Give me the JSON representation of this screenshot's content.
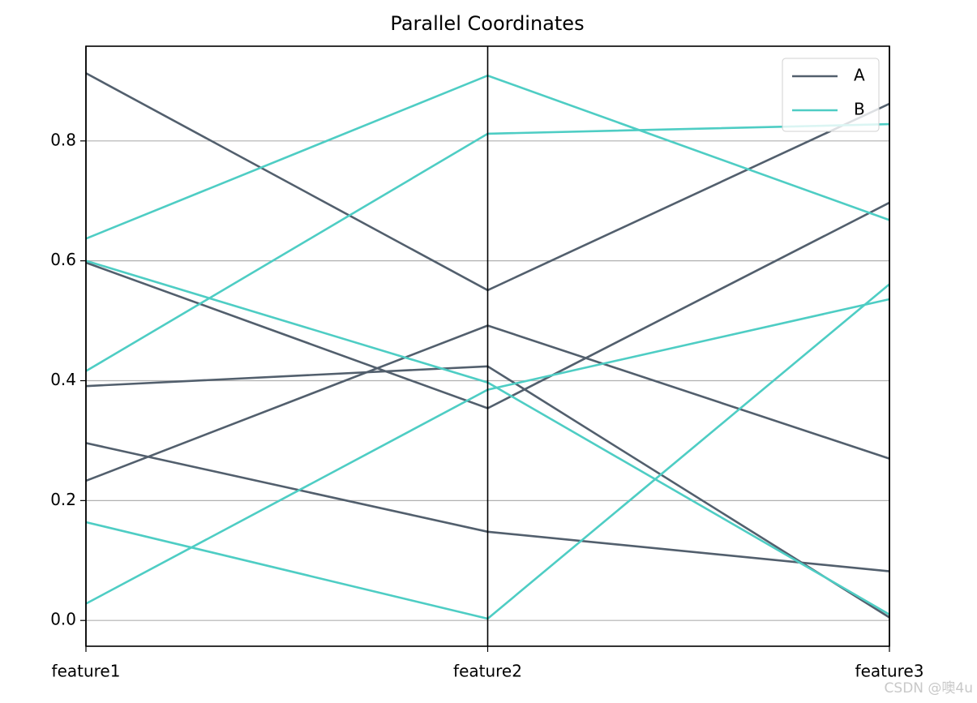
{
  "chart_data": {
    "type": "parallel_coordinates",
    "title": "Parallel Coordinates",
    "categories": [
      "feature1",
      "feature2",
      "feature3"
    ],
    "series": [
      {
        "name": "A",
        "color": "#525f6d",
        "values": [
          [
            0.913,
            0.551,
            0.862
          ],
          [
            0.597,
            0.354,
            0.697
          ],
          [
            0.391,
            0.424,
            0.005
          ],
          [
            0.233,
            0.492,
            0.27
          ],
          [
            0.296,
            0.148,
            0.082
          ]
        ]
      },
      {
        "name": "B",
        "color": "#4ecdc4",
        "values": [
          [
            0.637,
            0.909,
            0.668
          ],
          [
            0.416,
            0.812,
            0.828
          ],
          [
            0.6,
            0.397,
            0.01
          ],
          [
            0.028,
            0.385,
            0.536
          ],
          [
            0.164,
            0.003,
            0.561
          ]
        ]
      }
    ],
    "ylim": [
      -0.043,
      0.958
    ],
    "yticks": [
      {
        "value": 0,
        "label": "0.0"
      },
      0.2,
      0.4,
      0.6,
      0.8
    ],
    "grid": true,
    "legend": "upper right",
    "watermark": "CSDN @噢4u"
  }
}
